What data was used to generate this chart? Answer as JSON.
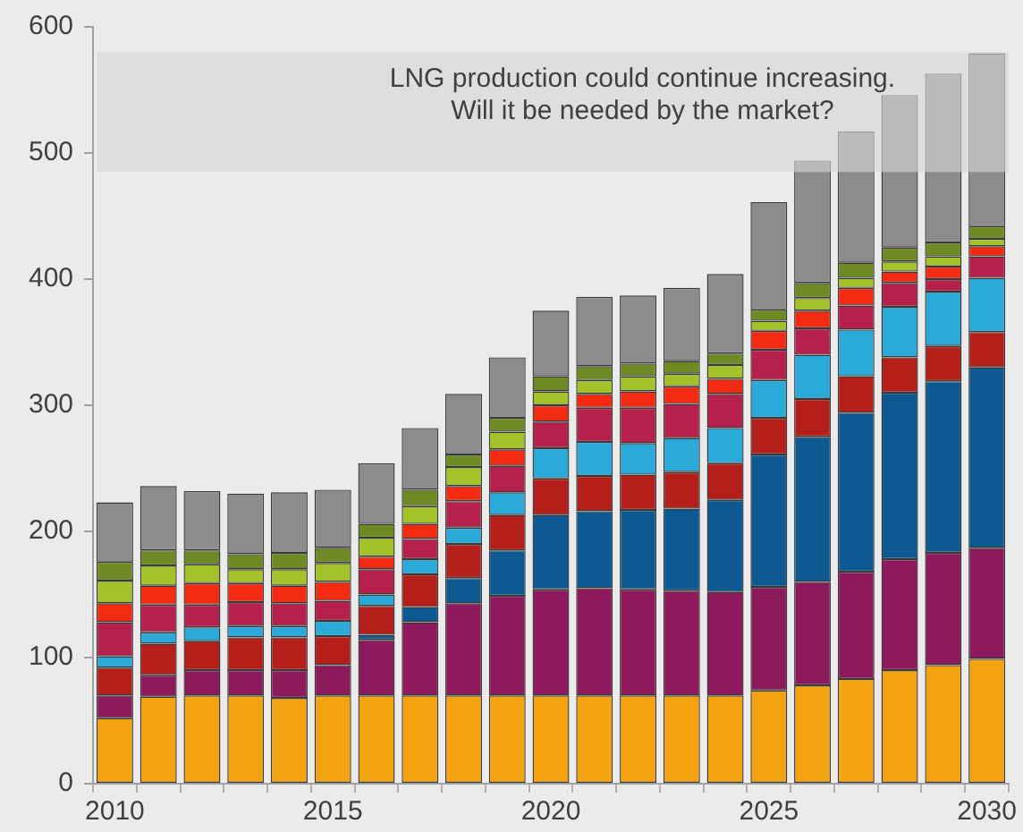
{
  "chart_data": {
    "type": "bar",
    "stacked": true,
    "legend": false,
    "categories": [
      "2010",
      null,
      null,
      null,
      null,
      "2015",
      null,
      null,
      null,
      null,
      "2020",
      null,
      null,
      null,
      null,
      "2025",
      null,
      null,
      null,
      null,
      "2030"
    ],
    "ylim": [
      0,
      600
    ],
    "yticks": [
      0,
      100,
      200,
      300,
      400,
      500,
      600
    ],
    "series": [
      {
        "color": "#f2a30f",
        "values": [
          52,
          69,
          70,
          70,
          68,
          70,
          70,
          70,
          70,
          70,
          70,
          70,
          70,
          70,
          70,
          74,
          78,
          83,
          90,
          94,
          99
        ]
      },
      {
        "color": "#8e1a5e",
        "values": [
          18,
          17,
          20,
          20,
          22,
          24,
          44,
          58,
          73,
          79,
          84,
          85,
          84,
          83,
          82,
          82,
          82,
          85,
          88,
          89,
          88
        ]
      },
      {
        "color": "#0d5a92",
        "values": [
          0,
          0,
          0,
          0,
          0,
          0,
          4,
          12,
          20,
          36,
          59,
          61,
          63,
          65,
          73,
          105,
          115,
          126,
          132,
          136,
          143
        ]
      },
      {
        "color": "#b51f1a",
        "values": [
          22,
          25,
          23,
          26,
          26,
          23,
          23,
          26,
          27,
          28,
          29,
          28,
          28,
          29,
          29,
          29,
          30,
          29,
          28,
          28,
          28
        ]
      },
      {
        "color": "#2ba9d8",
        "values": [
          9,
          9,
          11,
          9,
          9,
          12,
          9,
          12,
          13,
          18,
          24,
          27,
          25,
          27,
          28,
          30,
          35,
          37,
          40,
          43,
          43
        ]
      },
      {
        "color": "#b5204c",
        "values": [
          27,
          22,
          18,
          19,
          18,
          16,
          20,
          16,
          21,
          21,
          21,
          27,
          28,
          27,
          27,
          24,
          21,
          19,
          19,
          10,
          17
        ]
      },
      {
        "color": "#f52a12",
        "values": [
          15,
          15,
          17,
          15,
          14,
          15,
          10,
          12,
          12,
          13,
          13,
          11,
          13,
          14,
          12,
          15,
          14,
          14,
          9,
          10,
          8
        ]
      },
      {
        "color": "#a3c22a",
        "values": [
          18,
          16,
          15,
          11,
          13,
          15,
          15,
          14,
          15,
          14,
          11,
          11,
          12,
          10,
          11,
          8,
          10,
          8,
          8,
          8,
          6
        ]
      },
      {
        "color": "#6e8a24",
        "values": [
          15,
          12,
          11,
          12,
          13,
          12,
          11,
          13,
          10,
          11,
          12,
          11,
          10,
          10,
          9,
          9,
          12,
          12,
          11,
          11,
          10
        ]
      },
      {
        "color": "#8c8c8c",
        "values": [
          47,
          51,
          47,
          48,
          48,
          46,
          48,
          49,
          48,
          48,
          52,
          55,
          54,
          58,
          63,
          85,
          97,
          104,
          121,
          134,
          137
        ]
      }
    ],
    "bands": [
      {
        "axis": "y",
        "from": 485,
        "to": 580,
        "color": "#d6d6d6",
        "label": "LNG production could continue increasing.\nWill it be needed by the market?"
      }
    ]
  }
}
